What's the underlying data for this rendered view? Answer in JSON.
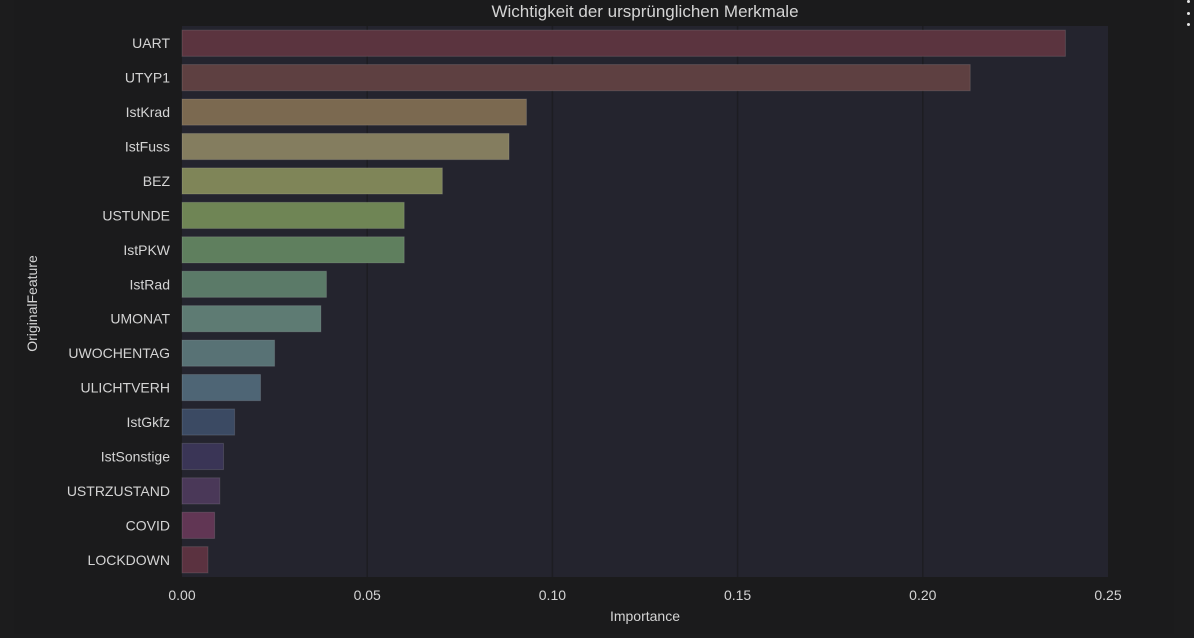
{
  "chart_data": {
    "type": "bar",
    "orientation": "horizontal",
    "title": "Wichtigkeit der ursprünglichen Merkmale",
    "xlabel": "Importance",
    "ylabel": "OriginalFeature",
    "xlim": [
      0,
      0.25
    ],
    "xticks": [
      "0.00",
      "0.05",
      "0.10",
      "0.15",
      "0.20",
      "0.25"
    ],
    "xtick_values": [
      0,
      0.05,
      0.1,
      0.15,
      0.2,
      0.25
    ],
    "grid": true,
    "categories": [
      "UART",
      "UTYP1",
      "IstKrad",
      "IstFuss",
      "BEZ",
      "USTUNDE",
      "IstPKW",
      "IstRad",
      "UMONAT",
      "UWOCHENTAG",
      "ULICHTVERH",
      "IstGkfz",
      "IstSonstige",
      "USTRZUSTAND",
      "COVID",
      "LOCKDOWN"
    ],
    "values": [
      0.2385,
      0.2128,
      0.093,
      0.0883,
      0.0703,
      0.06,
      0.06,
      0.039,
      0.0375,
      0.025,
      0.0212,
      0.0142,
      0.0112,
      0.0102,
      0.0088,
      0.007
    ],
    "colors": [
      "#5b343f",
      "#5e4041",
      "#7b6950",
      "#847d5f",
      "#7f8558",
      "#6f8555",
      "#5f7f5e",
      "#5b7a68",
      "#5e7b73",
      "#587275",
      "#4e6575",
      "#3b4a63",
      "#3a3556",
      "#4a3858",
      "#613654",
      "#5b3240"
    ],
    "colors_meta": {
      "plot_bg": "#24242e",
      "grid": "#1d1d22",
      "text": "#d4d4d4",
      "title": "#d4d4d4"
    }
  }
}
